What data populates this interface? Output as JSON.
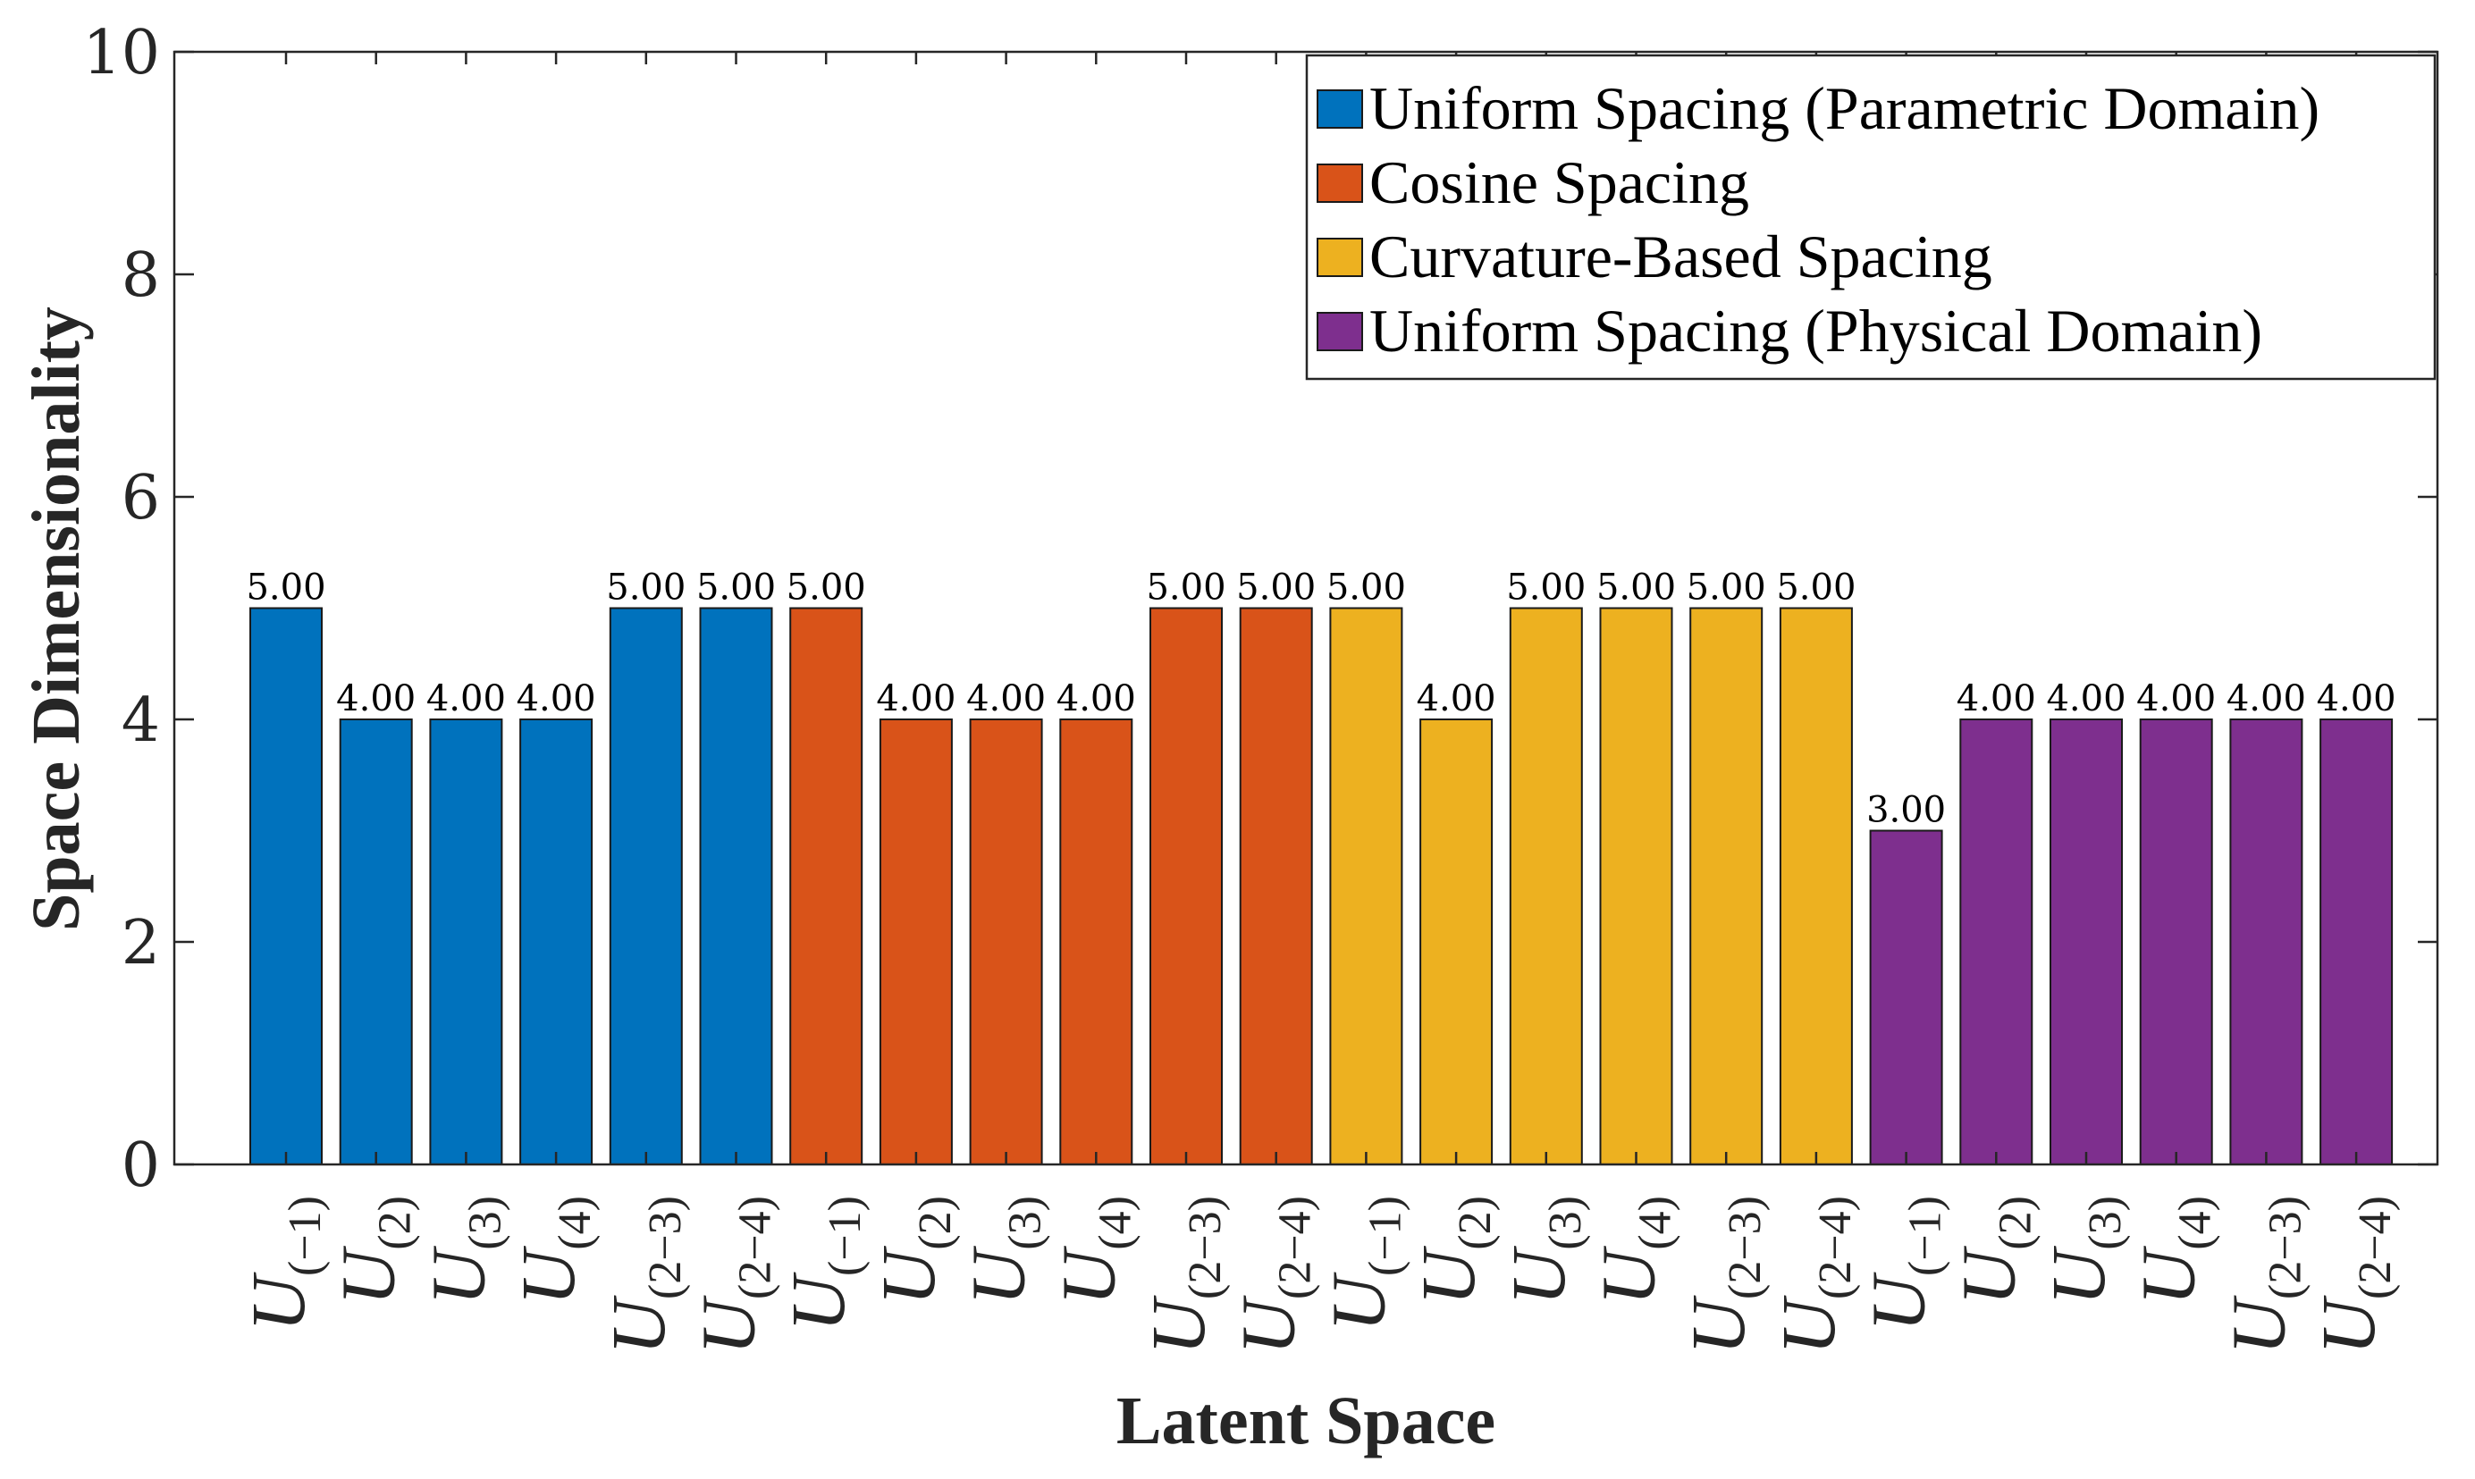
{
  "chart_data": {
    "type": "bar",
    "title": "",
    "xlabel": "Latent Space",
    "ylabel": "Space Dimensionality",
    "ylim": [
      0,
      10
    ],
    "yticks": [
      "0",
      "2",
      "4",
      "6",
      "8",
      "10"
    ],
    "grid": false,
    "legend_position": "top-right",
    "categories": [
      {
        "base": "U",
        "sub": "(−1)"
      },
      {
        "base": "U",
        "sub": "(2)"
      },
      {
        "base": "U",
        "sub": "(3)"
      },
      {
        "base": "U",
        "sub": "(4)"
      },
      {
        "base": "U",
        "sub": "(2−3)"
      },
      {
        "base": "U",
        "sub": "(2−4)"
      }
    ],
    "series": [
      {
        "name": "Uniform Spacing (Parametric Domain)",
        "color": "#0072BD",
        "values": [
          5,
          4,
          4,
          4,
          5,
          5
        ],
        "labels": [
          "5.00",
          "4.00",
          "4.00",
          "4.00",
          "5.00",
          "5.00"
        ]
      },
      {
        "name": "Cosine Spacing",
        "color": "#D95319",
        "values": [
          5,
          4,
          4,
          4,
          5,
          5
        ],
        "labels": [
          "5.00",
          "4.00",
          "4.00",
          "4.00",
          "5.00",
          "5.00"
        ]
      },
      {
        "name": "Curvature-Based Spacing",
        "color": "#EDB120",
        "values": [
          5,
          4,
          5,
          5,
          5,
          5
        ],
        "labels": [
          "5.00",
          "4.00",
          "5.00",
          "5.00",
          "5.00",
          "5.00"
        ]
      },
      {
        "name": "Uniform Spacing (Physical Domain)",
        "color": "#7E2F8E",
        "values": [
          3,
          4,
          4,
          4,
          4,
          4
        ],
        "labels": [
          "3.00",
          "4.00",
          "4.00",
          "4.00",
          "4.00",
          "4.00"
        ]
      }
    ]
  }
}
